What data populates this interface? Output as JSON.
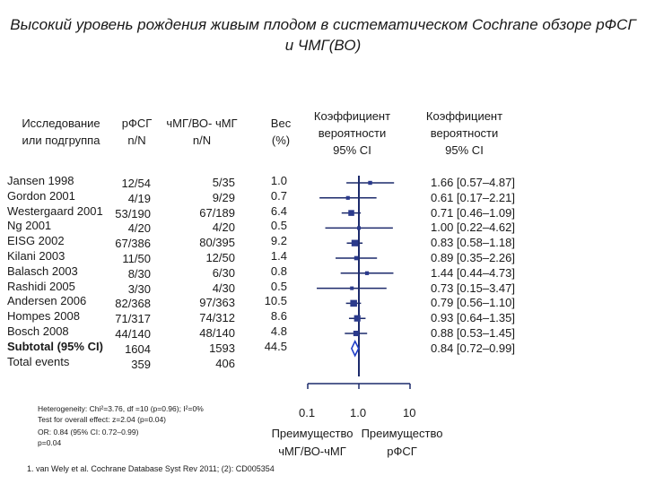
{
  "title": {
    "line1": "Высокий уровень рождения живым плодом в систематическом Cochrane обзоре рФСГ",
    "line2": "и ЧМГ(ВО)"
  },
  "headers": {
    "study": "Исследование\nили подгруппа",
    "rfsh": "рФСГ\nn/N",
    "hmg": "чМГ/ВО- чМГ\nn/N",
    "weight": "Вес\n(%)",
    "or_plot": "Коэффициент\nвероятности\n95% CI",
    "or_text": "Коэффициент\nвероятности\n95% CI"
  },
  "chart_data": {
    "type": "forest",
    "scale": "log",
    "xlim": [
      0.1,
      10
    ],
    "ticks": [
      "0.1",
      "1.0",
      "10"
    ],
    "null_value": 1.0,
    "studies": [
      {
        "name": "Jansen 1998",
        "rfsh": "12/54",
        "hmg": "5/35",
        "weight": "1.0",
        "or": 1.66,
        "lo": 0.57,
        "hi": 4.87,
        "ci_text": "1.66 [0.57–4.87]"
      },
      {
        "name": "Gordon 2001",
        "rfsh": "4/19",
        "hmg": "9/29",
        "weight": "0.7",
        "or": 0.61,
        "lo": 0.17,
        "hi": 2.21,
        "ci_text": "0.61 [0.17–2.21]"
      },
      {
        "name": "Westergaard 2001",
        "rfsh": "53/190",
        "hmg": "67/189",
        "weight": "6.4",
        "or": 0.71,
        "lo": 0.46,
        "hi": 1.09,
        "ci_text": "0.71 [0.46–1.09]"
      },
      {
        "name": "Ng 2001",
        "rfsh": "4/20",
        "hmg": "4/20",
        "weight": "0.5",
        "or": 1.0,
        "lo": 0.22,
        "hi": 4.62,
        "ci_text": "1.00 [0.22–4.62]"
      },
      {
        "name": "EISG 2002",
        "rfsh": "67/386",
        "hmg": "80/395",
        "weight": "9.2",
        "or": 0.83,
        "lo": 0.58,
        "hi": 1.18,
        "ci_text": "0.83 [0.58–1.18]"
      },
      {
        "name": "Kilani 2003",
        "rfsh": "11/50",
        "hmg": "12/50",
        "weight": "1.4",
        "or": 0.89,
        "lo": 0.35,
        "hi": 2.26,
        "ci_text": "0.89 [0.35–2.26]"
      },
      {
        "name": "Balasch 2003",
        "rfsh": "8/30",
        "hmg": "6/30",
        "weight": "0.8",
        "or": 1.44,
        "lo": 0.44,
        "hi": 4.73,
        "ci_text": "1.44 [0.44–4.73]"
      },
      {
        "name": "Rashidi 2005",
        "rfsh": "3/30",
        "hmg": "4/30",
        "weight": "0.5",
        "or": 0.73,
        "lo": 0.15,
        "hi": 3.47,
        "ci_text": "0.73 [0.15–3.47]"
      },
      {
        "name": "Andersen 2006",
        "rfsh": "82/368",
        "hmg": "97/363",
        "weight": "10.5",
        "or": 0.79,
        "lo": 0.56,
        "hi": 1.1,
        "ci_text": "0.79 [0.56–1.10]"
      },
      {
        "name": "Hompes 2008",
        "rfsh": "71/317",
        "hmg": "74/312",
        "weight": "8.6",
        "or": 0.93,
        "lo": 0.64,
        "hi": 1.35,
        "ci_text": "0.93 [0.64–1.35]"
      },
      {
        "name": "Bosch 2008",
        "rfsh": "44/140",
        "hmg": "48/140",
        "weight": "4.8",
        "or": 0.88,
        "lo": 0.53,
        "hi": 1.45,
        "ci_text": "0.88 [0.53–1.45]"
      }
    ],
    "subtotal": {
      "name": "Subtotal (95% CI)",
      "rfsh": "1604",
      "hmg": "1593",
      "weight": "44.5",
      "or": 0.84,
      "lo": 0.72,
      "hi": 0.99,
      "ci_text": "0.84 [0.72–0.99]"
    },
    "total_events": {
      "name": "Total events",
      "rfsh": "359",
      "hmg": "406"
    },
    "favours_left": "Преимущество\nчМГ/ВО-чМГ",
    "favours_right": "Преимущество\nрФСГ",
    "colors": {
      "line": "#1c2a6b",
      "marker": "#2b3a8c",
      "diamond": "#1f3ec8"
    }
  },
  "notes": {
    "heterogeneity": "Heterogeneity: Chi²=3.76, df =10 (p=0.96); I²=0%",
    "overall": "Test for overall effect: z=2.04 (p=0.04)",
    "or_summary": "OR: 0.84 (95% CI: 0.72–0.99)",
    "p_value": "p=0.04"
  },
  "footnote": "1.  van Wely et al. Cochrane Database Syst Rev 2011; (2): CD005354"
}
